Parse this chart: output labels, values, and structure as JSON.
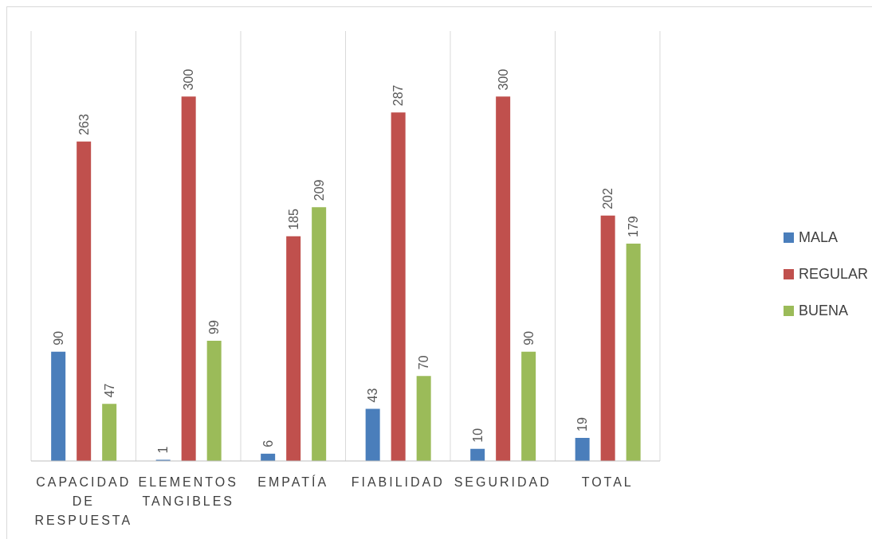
{
  "chart_data": {
    "type": "bar",
    "categories": [
      "CAPACIDAD DE RESPUESTA",
      "ELEMENTOS TANGIBLES",
      "EMPATÍA",
      "FIABILIDAD",
      "SEGURIDAD",
      "TOTAL"
    ],
    "series": [
      {
        "name": "MALA",
        "color": "#4a7ebb",
        "values": [
          90,
          1,
          6,
          43,
          10,
          19
        ]
      },
      {
        "name": "REGULAR",
        "color": "#c0504d",
        "values": [
          263,
          300,
          185,
          287,
          300,
          202
        ]
      },
      {
        "name": "BUENA",
        "color": "#9bbb59",
        "values": [
          47,
          99,
          209,
          70,
          90,
          179
        ]
      }
    ],
    "data_labels": true,
    "grid": "x",
    "legend": "right"
  }
}
